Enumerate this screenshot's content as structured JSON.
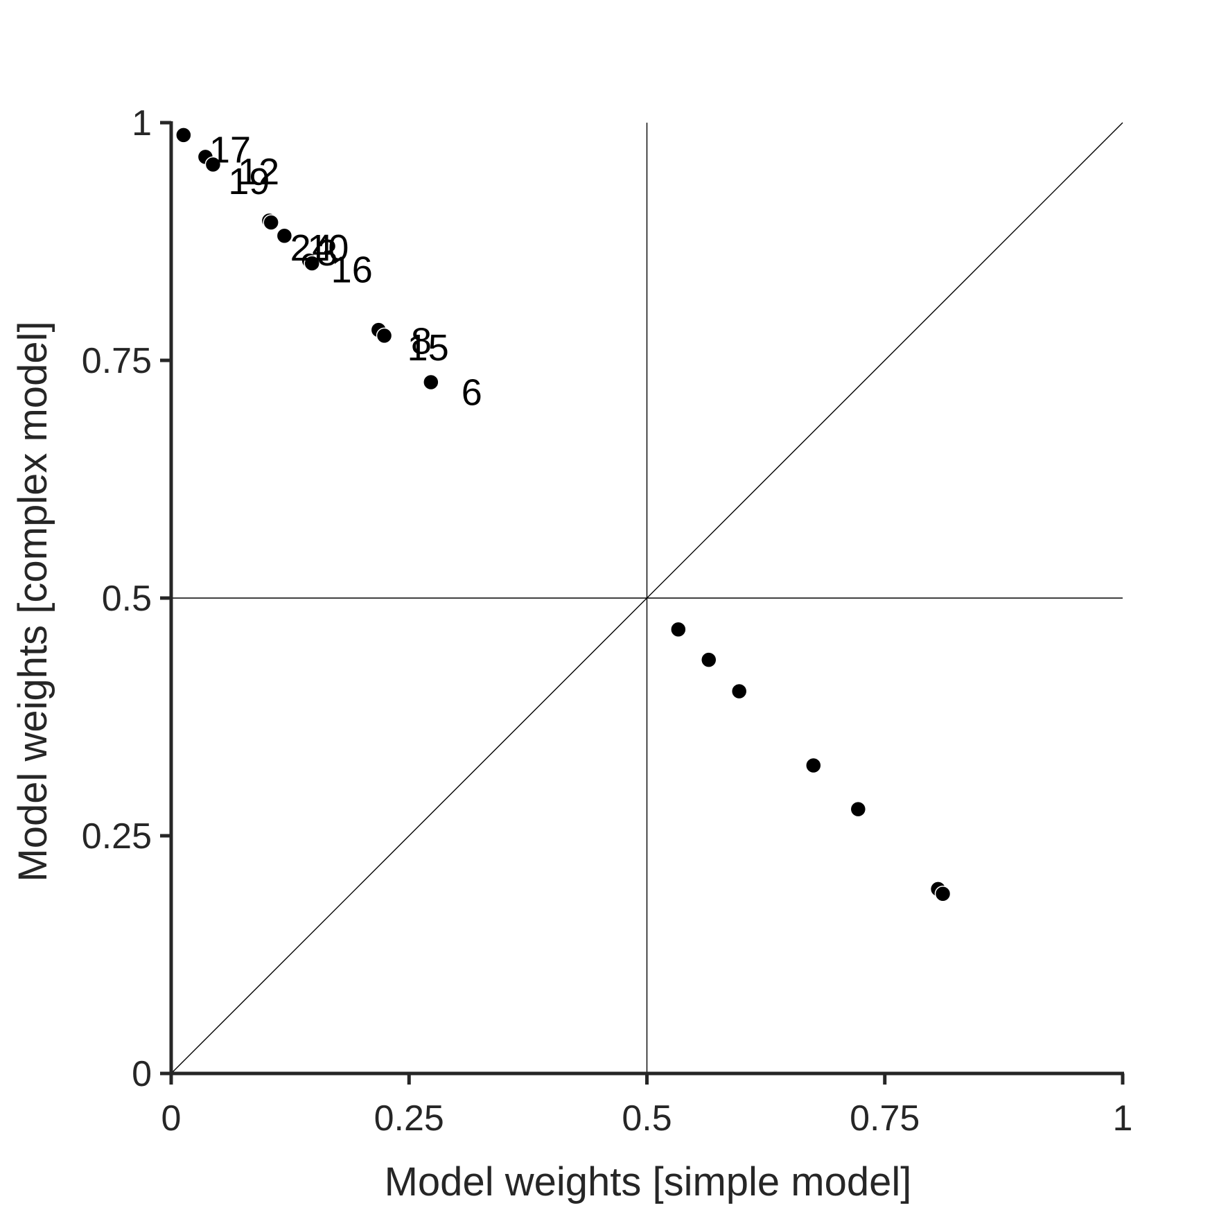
{
  "chart_data": {
    "type": "scatter",
    "title": "",
    "xlabel": "Model weights [simple model]",
    "ylabel": "Model weights [complex model]",
    "xlim": [
      0,
      1
    ],
    "ylim": [
      0,
      1
    ],
    "xticks": [
      "0",
      "0.25",
      "0.5",
      "0.75",
      "1"
    ],
    "yticks": [
      "0",
      "0.25",
      "0.5",
      "0.75",
      "1"
    ],
    "grid": false,
    "reference_lines": {
      "vertical_x": 0.5,
      "horizontal_y": 0.5,
      "diagonal": true
    },
    "colors": {
      "axis": "#262626",
      "points": "#000000",
      "reference_lines": "#000000"
    },
    "points": [
      {
        "x": 0.013,
        "y": 0.987
      },
      {
        "x": 0.036,
        "y": 0.964
      },
      {
        "x": 0.044,
        "y": 0.956
      },
      {
        "x": 0.103,
        "y": 0.897
      },
      {
        "x": 0.105,
        "y": 0.895
      },
      {
        "x": 0.119,
        "y": 0.881
      },
      {
        "x": 0.145,
        "y": 0.855
      },
      {
        "x": 0.148,
        "y": 0.852
      },
      {
        "x": 0.218,
        "y": 0.782
      },
      {
        "x": 0.224,
        "y": 0.776
      },
      {
        "x": 0.273,
        "y": 0.727
      },
      {
        "x": 0.533,
        "y": 0.467
      },
      {
        "x": 0.565,
        "y": 0.435
      },
      {
        "x": 0.597,
        "y": 0.402
      },
      {
        "x": 0.675,
        "y": 0.324
      },
      {
        "x": 0.722,
        "y": 0.278
      },
      {
        "x": 0.806,
        "y": 0.194
      },
      {
        "x": 0.811,
        "y": 0.189
      }
    ],
    "annotations": [
      {
        "text": "17",
        "x": 0.04,
        "y": 0.958
      },
      {
        "text": "12",
        "x": 0.07,
        "y": 0.935
      },
      {
        "text": "19",
        "x": 0.06,
        "y": 0.925
      },
      {
        "text": "2",
        "x": 0.125,
        "y": 0.855
      },
      {
        "text": "10",
        "x": 0.143,
        "y": 0.855
      },
      {
        "text": "4",
        "x": 0.148,
        "y": 0.855
      },
      {
        "text": "3",
        "x": 0.153,
        "y": 0.85
      },
      {
        "text": "16",
        "x": 0.168,
        "y": 0.832
      },
      {
        "text": "8",
        "x": 0.252,
        "y": 0.757
      },
      {
        "text": "1",
        "x": 0.248,
        "y": 0.75
      },
      {
        "text": "5",
        "x": 0.27,
        "y": 0.75
      },
      {
        "text": "6",
        "x": 0.305,
        "y": 0.703
      }
    ]
  }
}
